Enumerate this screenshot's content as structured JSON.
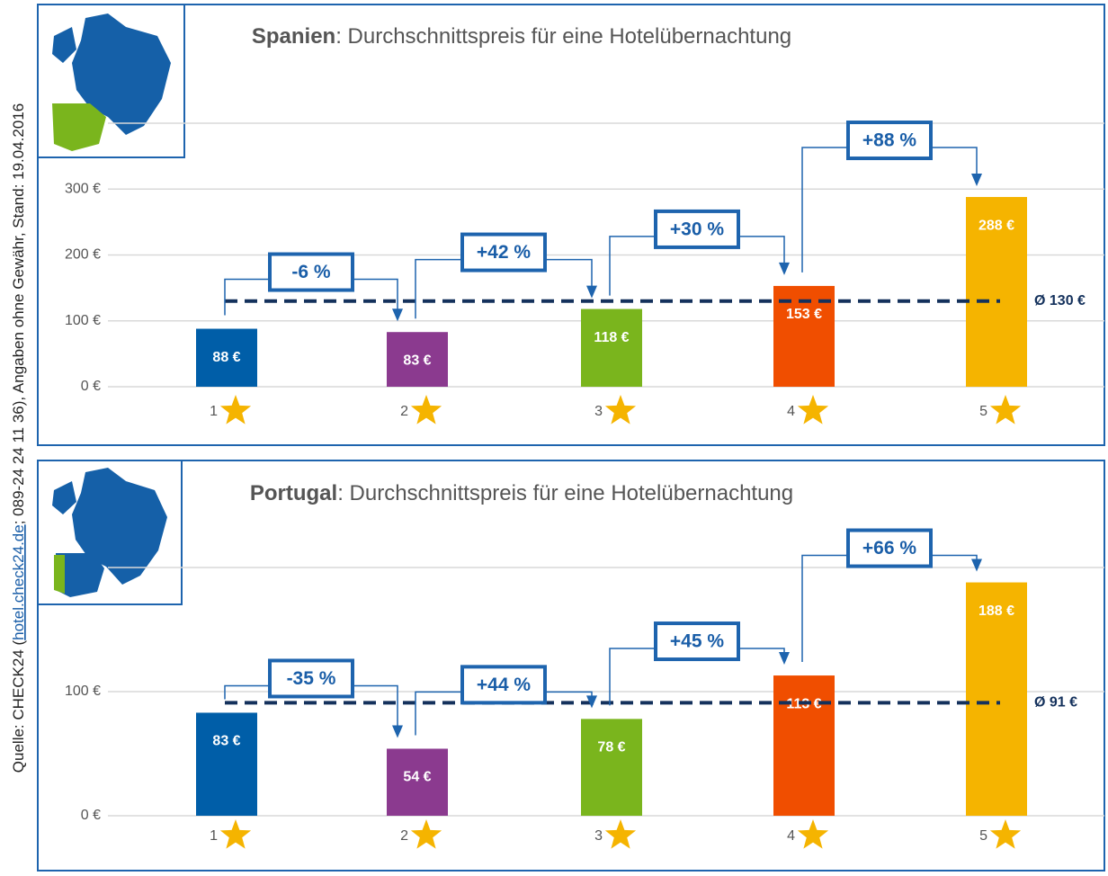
{
  "source": {
    "prefix": "Quelle: CHECK24 (",
    "link": "hotel.check24.de",
    "suffix": "; 089-24 24 11 36), Angaben ohne Gewähr, Stand: 19.04.2016"
  },
  "chart_data": [
    {
      "type": "bar",
      "title_bold": "Spanien",
      "title_rest": ": Durchschnittspreis für eine Hotelübernachtung",
      "categories": [
        "1",
        "2",
        "3",
        "4",
        "5"
      ],
      "values": [
        88,
        83,
        118,
        153,
        288
      ],
      "value_labels": [
        "88 €",
        "83 €",
        "118 €",
        "153 €",
        "288 €"
      ],
      "colors": [
        "#005ea8",
        "#8b3a8f",
        "#7ab51d",
        "#f04e00",
        "#f5b400"
      ],
      "ylim": [
        0,
        400
      ],
      "yticks": [
        {
          "value": 0,
          "label": "0 €"
        },
        {
          "value": 100,
          "label": "100 €"
        },
        {
          "value": 200,
          "label": "200 €"
        },
        {
          "value": 300,
          "label": "300 €"
        },
        {
          "value": 400,
          "label": null
        }
      ],
      "grid": true,
      "average": {
        "value": 130,
        "label": "Ø 130 €"
      },
      "changes": [
        {
          "value": -6,
          "label": "-6 %"
        },
        {
          "value": 42,
          "label": "+42 %"
        },
        {
          "value": 30,
          "label": "+30 %"
        },
        {
          "value": 88,
          "label": "+88 %"
        }
      ]
    },
    {
      "type": "bar",
      "title_bold": "Portugal",
      "title_rest": ": Durchschnittspreis für eine Hotelübernachtung",
      "categories": [
        "1",
        "2",
        "3",
        "4",
        "5"
      ],
      "values": [
        83,
        54,
        78,
        113,
        188
      ],
      "value_labels": [
        "83 €",
        "54 €",
        "78 €",
        "113 €",
        "188 €"
      ],
      "colors": [
        "#005ea8",
        "#8b3a8f",
        "#7ab51d",
        "#f04e00",
        "#f5b400"
      ],
      "ylim": [
        0,
        200
      ],
      "yticks": [
        {
          "value": 0,
          "label": "0 €"
        },
        {
          "value": 100,
          "label": "100 €"
        },
        {
          "value": 200,
          "label": null
        }
      ],
      "grid": true,
      "average": {
        "value": 91,
        "label": "Ø 91 €"
      },
      "changes": [
        {
          "value": -35,
          "label": "-35 %"
        },
        {
          "value": 44,
          "label": "+44 %"
        },
        {
          "value": 45,
          "label": "+45 %"
        },
        {
          "value": 66,
          "label": "+66 %"
        }
      ]
    }
  ]
}
